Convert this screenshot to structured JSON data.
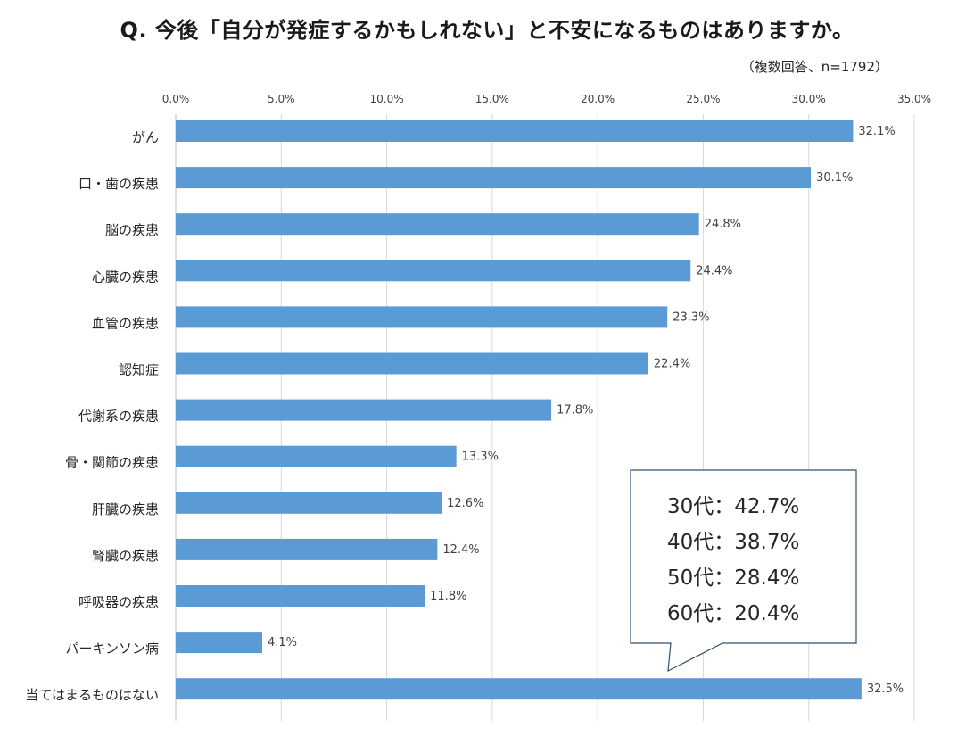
{
  "title": "Q.  今後「自分が発症するかもしれない」と不安になるものはありますか。",
  "subtitle": "（複数回答、n=1792）",
  "chart_data": {
    "type": "bar",
    "orientation": "horizontal",
    "title": "Q.  今後「自分が発症するかもしれない」と不安になるものはありますか。",
    "subtitle": "（複数回答、n=1792）",
    "xlabel": "",
    "ylabel": "",
    "xlim": [
      0,
      35
    ],
    "x_ticks": [
      "0.0%",
      "5.0%",
      "10.0%",
      "15.0%",
      "20.0%",
      "25.0%",
      "30.0%",
      "35.0%"
    ],
    "x_axis_position": "top",
    "grid": true,
    "bar_color": "#5b9bd5",
    "categories": [
      "がん",
      "口・歯の疾患",
      "脳の疾患",
      "心臓の疾患",
      "血管の疾患",
      "認知症",
      "代謝系の疾患",
      "骨・関節の疾患",
      "肝臓の疾患",
      "腎臓の疾患",
      "呼吸器の疾患",
      "パーキンソン病",
      "当てはまるものはない"
    ],
    "values": [
      32.1,
      30.1,
      24.8,
      24.4,
      23.3,
      22.4,
      17.8,
      13.3,
      12.6,
      12.4,
      11.8,
      4.1,
      32.5
    ],
    "data_labels": [
      "32.1%",
      "30.1%",
      "24.8%",
      "24.4%",
      "23.3%",
      "22.4%",
      "17.8%",
      "13.3%",
      "12.6%",
      "12.4%",
      "11.8%",
      "4.1%",
      "32.5%"
    ],
    "annotation": {
      "lines": [
        "30代：42.7%",
        "40代：38.7%",
        "50代：28.4%",
        "60代：20.4%"
      ],
      "points_to": "当てはまるものはない"
    }
  }
}
